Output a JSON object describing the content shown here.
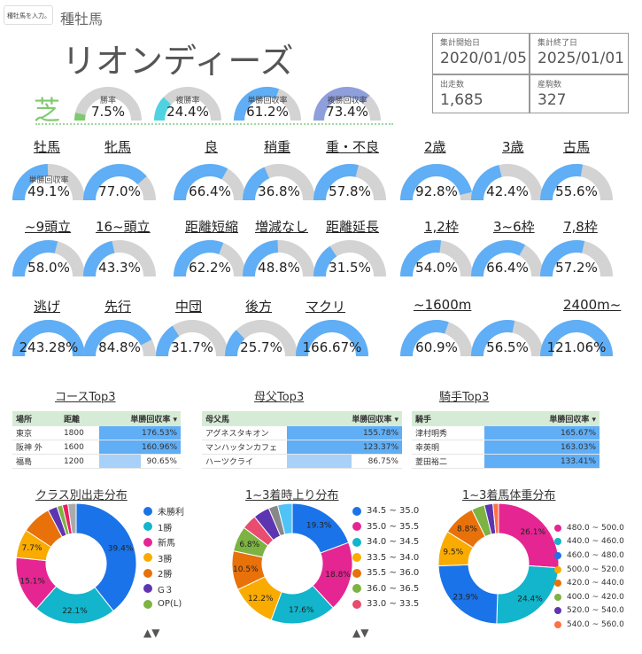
{
  "app": {
    "chip_label": "種牡馬を入力。",
    "chip_caret": "▾",
    "header_title": "種牡馬",
    "horse_name": "リオンディーズ",
    "surface": "芝"
  },
  "stats": {
    "start_label": "集計開始日",
    "start_value": "2020/01/05",
    "end_label": "集計終了日",
    "end_value": "2025/01/01",
    "runs_label": "出走数",
    "runs_value": "1,685",
    "foals_label": "産駒数",
    "foals_value": "327"
  },
  "colors": {
    "track": "#d3d3d3",
    "blue": "#5faef6",
    "win": "#7fc96f",
    "place": "#4fd3e0",
    "winret": "#5faef6",
    "placeret": "#8f9fdc"
  },
  "top_gauges": [
    {
      "label": "勝率",
      "value": "7.5%",
      "pct": 7.5,
      "color": "#7fc96f"
    },
    {
      "label": "複勝率",
      "value": "24.4%",
      "pct": 24.4,
      "color": "#4fd3e0"
    },
    {
      "label": "単勝回収率",
      "value": "61.2%",
      "pct": 61.2,
      "color": "#5faef6"
    },
    {
      "label": "複勝回収率",
      "value": "73.4%",
      "pct": 73.4,
      "color": "#8f9fdc"
    }
  ],
  "gauge_caption": "単勝回収率",
  "link_labels": [
    "牡馬",
    "牝馬",
    "良",
    "稍重",
    "重・不良",
    "2歳",
    "3歳",
    "古馬",
    "~9頭立",
    "16~頭立",
    "距離短縮",
    "増減なし",
    "距離延長",
    "1,2枠",
    "3~6枠",
    "7,8枠",
    "逃げ",
    "先行",
    "中団",
    "後方",
    "マクリ",
    "~1600m",
    "2400m~"
  ],
  "gauges": [
    {
      "value": "49.1%",
      "pct": 49.1
    },
    {
      "value": "77.0%",
      "pct": 77.0
    },
    {
      "value": "66.4%",
      "pct": 66.4
    },
    {
      "value": "36.8%",
      "pct": 36.8
    },
    {
      "value": "57.8%",
      "pct": 57.8
    },
    {
      "value": "92.8%",
      "pct": 92.8
    },
    {
      "value": "42.4%",
      "pct": 42.4
    },
    {
      "value": "55.6%",
      "pct": 55.6
    },
    {
      "value": "58.0%",
      "pct": 58.0
    },
    {
      "value": "43.3%",
      "pct": 43.3
    },
    {
      "value": "62.2%",
      "pct": 62.2
    },
    {
      "value": "48.8%",
      "pct": 48.8
    },
    {
      "value": "31.5%",
      "pct": 31.5
    },
    {
      "value": "54.0%",
      "pct": 54.0
    },
    {
      "value": "66.4%",
      "pct": 66.4
    },
    {
      "value": "57.2%",
      "pct": 57.2
    },
    {
      "value": "243.28%",
      "pct": 100
    },
    {
      "value": "84.8%",
      "pct": 84.8
    },
    {
      "value": "31.7%",
      "pct": 31.7
    },
    {
      "value": "25.7%",
      "pct": 25.7
    },
    {
      "value": "166.67%",
      "pct": 100
    },
    {
      "value": "60.9%",
      "pct": 60.9
    },
    {
      "value": "56.5%",
      "pct": 56.5
    },
    {
      "value": "121.06%",
      "pct": 100
    }
  ],
  "tables": [
    {
      "title": "コースTop3",
      "h1": "場所",
      "h2": "距離",
      "h3": "単勝回収率 ▾",
      "rows": [
        {
          "a": "東京",
          "b": "1800",
          "c": "176.53%",
          "pct": 100
        },
        {
          "a": "阪神 外",
          "b": "1600",
          "c": "160.96%",
          "pct": 100
        },
        {
          "a": "福島",
          "b": "1200",
          "c": "90.65%",
          "pct": 51
        }
      ]
    },
    {
      "title": "母父Top3",
      "h1": "母父馬",
      "h2": "",
      "h3": "単勝回収率 ▾",
      "rows": [
        {
          "a": "アグネスタキオン",
          "b": "",
          "c": "155.78%",
          "pct": 100
        },
        {
          "a": "マンハッタンカフェ",
          "b": "",
          "c": "123.37%",
          "pct": 100
        },
        {
          "a": "ハーツクライ",
          "b": "",
          "c": "86.75%",
          "pct": 56
        }
      ]
    },
    {
      "title": "騎手Top3",
      "h1": "騎手",
      "h2": "",
      "h3": "単勝回収率 ▾",
      "rows": [
        {
          "a": "津村明秀",
          "b": "",
          "c": "165.67%",
          "pct": 100
        },
        {
          "a": "幸英明",
          "b": "",
          "c": "163.03%",
          "pct": 100
        },
        {
          "a": "菱田裕二",
          "b": "",
          "c": "133.41%",
          "pct": 100
        }
      ]
    }
  ],
  "donuts": [
    {
      "title": "クラス別出走分布",
      "slices": [
        {
          "name": "未勝利",
          "v": 39.4,
          "color": "#1a73e8",
          "label": "39.4%"
        },
        {
          "name": "1勝",
          "v": 22.1,
          "color": "#12b5cb",
          "label": "22.1%"
        },
        {
          "name": "新馬",
          "v": 15.1,
          "color": "#e52592",
          "label": "15.1%"
        },
        {
          "name": "3勝",
          "v": 7.7,
          "color": "#f9ab00",
          "label": "7.7%"
        },
        {
          "name": "2勝",
          "v": 8.0,
          "color": "#e8710a",
          "label": ""
        },
        {
          "name": "G３",
          "v": 2.5,
          "color": "#5e35b1",
          "label": ""
        },
        {
          "name": "OP(L)",
          "v": 1.5,
          "color": "#7cb342",
          "label": ""
        },
        {
          "name": "",
          "v": 1.5,
          "color": "#e91e63",
          "label": ""
        },
        {
          "name": "",
          "v": 2.2,
          "color": "#aaaaaa",
          "label": ""
        }
      ],
      "arrows": "▲▼"
    },
    {
      "title": "1~3着時上り分布",
      "slices": [
        {
          "name": "34.5 ~ 35.0",
          "v": 19.3,
          "color": "#1a73e8",
          "label": "19.3%"
        },
        {
          "name": "35.0 ~ 35.5",
          "v": 18.8,
          "color": "#e52592",
          "label": "18.8%"
        },
        {
          "name": "34.0 ~ 34.5",
          "v": 17.6,
          "color": "#12b5cb",
          "label": "17.6%"
        },
        {
          "name": "33.5 ~ 34.0",
          "v": 12.2,
          "color": "#f9ab00",
          "label": "12.2%"
        },
        {
          "name": "35.5 ~ 36.0",
          "v": 10.5,
          "color": "#e8710a",
          "label": "10.5%"
        },
        {
          "name": "36.0 ~ 36.5",
          "v": 6.8,
          "color": "#7cb342",
          "label": "6.8%"
        },
        {
          "name": "33.0 ~ 33.5",
          "v": 4.0,
          "color": "#e84c6e",
          "label": ""
        },
        {
          "name": "",
          "v": 4.4,
          "color": "#5e35b1",
          "label": ""
        },
        {
          "name": "",
          "v": 2.5,
          "color": "#888888",
          "label": ""
        },
        {
          "name": "",
          "v": 3.9,
          "color": "#4fc3f7",
          "label": ""
        }
      ],
      "arrows": "▲▼"
    },
    {
      "title": "1~3着馬体重分布",
      "slices": [
        {
          "name": "480.0 ~ 500.0",
          "v": 26.1,
          "color": "#e52592",
          "label": "26.1%"
        },
        {
          "name": "440.0 ~ 460.0",
          "v": 24.4,
          "color": "#12b5cb",
          "label": "24.4%"
        },
        {
          "name": "460.0 ~ 480.0",
          "v": 23.9,
          "color": "#1a73e8",
          "label": "23.9%"
        },
        {
          "name": "500.0 ~ 520.0",
          "v": 9.5,
          "color": "#f9ab00",
          "label": "9.5%"
        },
        {
          "name": "420.0 ~ 440.0",
          "v": 8.8,
          "color": "#e8710a",
          "label": "8.8%"
        },
        {
          "name": "400.0 ~ 420.0",
          "v": 3.5,
          "color": "#7cb342",
          "label": ""
        },
        {
          "name": "520.0 ~ 540.0",
          "v": 2.3,
          "color": "#5e35b1",
          "label": ""
        },
        {
          "name": "540.0 ~ 560.0",
          "v": 1.5,
          "color": "#ff7043",
          "label": ""
        }
      ],
      "arrows": ""
    }
  ]
}
